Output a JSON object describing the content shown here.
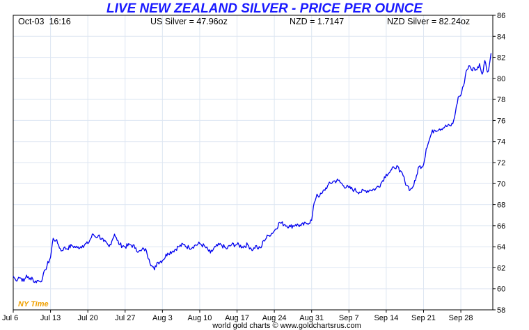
{
  "header": {
    "title": "LIVE NEW ZEALAND SILVER - PRICE PER OUNCE",
    "date_time": "Oct-03  16:16",
    "us_silver": "US Silver = 47.96oz",
    "nzd_rate": "NZD = 1.7147",
    "nzd_silver": "NZD Silver = 82.24oz"
  },
  "footer": {
    "credit": "world gold charts © www.goldchartsrus.com",
    "timezone": "NY Time"
  },
  "colors": {
    "line": "#0000ee",
    "title": "#1a1aff",
    "grid": "#dde6f2",
    "timezone": "#f0a000"
  },
  "chart_data": {
    "type": "line",
    "title": "LIVE NEW ZEALAND SILVER - PRICE PER OUNCE",
    "xlabel": "",
    "ylabel": "",
    "ylim": [
      58,
      86
    ],
    "yticks": [
      58,
      60,
      62,
      64,
      66,
      68,
      70,
      72,
      74,
      76,
      78,
      80,
      82,
      84,
      86
    ],
    "y_axis_side": "right",
    "grid": true,
    "x_domain": [
      "2025-07-06",
      "2025-10-03"
    ],
    "xticks": [
      {
        "date": "2025-07-06",
        "label": "Jul 6"
      },
      {
        "date": "2025-07-13",
        "label": "Jul 13"
      },
      {
        "date": "2025-07-20",
        "label": "Jul 20"
      },
      {
        "date": "2025-07-27",
        "label": "Jul 27"
      },
      {
        "date": "2025-08-03",
        "label": "Aug 3"
      },
      {
        "date": "2025-08-10",
        "label": "Aug 10"
      },
      {
        "date": "2025-08-17",
        "label": "Aug 17"
      },
      {
        "date": "2025-08-24",
        "label": "Aug 24"
      },
      {
        "date": "2025-08-31",
        "label": "Aug 31"
      },
      {
        "date": "2025-09-07",
        "label": "Sep 7"
      },
      {
        "date": "2025-09-14",
        "label": "Sep 14"
      },
      {
        "date": "2025-09-21",
        "label": "Sep 21"
      },
      {
        "date": "2025-09-28",
        "label": "Sep 28"
      }
    ],
    "series": [
      {
        "x": [
          "2025-07-06 00:00",
          "2025-07-06 12:00",
          "2025-07-07 00:00",
          "2025-07-07 12:00",
          "2025-07-08 00:00",
          "2025-07-08 12:00",
          "2025-07-09 00:00",
          "2025-07-09 12:00",
          "2025-07-10 00:00",
          "2025-07-10 12:00",
          "2025-07-11 00:00",
          "2025-07-11 12:00",
          "2025-07-12 00:00",
          "2025-07-13 00:00",
          "2025-07-13 12:00",
          "2025-07-14 00:00",
          "2025-07-14 12:00",
          "2025-07-15 00:00",
          "2025-07-15 12:00",
          "2025-07-16 00:00",
          "2025-07-17 00:00",
          "2025-07-18 00:00",
          "2025-07-19 00:00",
          "2025-07-20 00:00",
          "2025-07-21 00:00",
          "2025-07-21 12:00",
          "2025-07-22 00:00",
          "2025-07-23 00:00",
          "2025-07-24 00:00",
          "2025-07-25 00:00",
          "2025-07-25 12:00",
          "2025-07-26 00:00",
          "2025-07-27 00:00",
          "2025-07-28 00:00",
          "2025-07-29 00:00",
          "2025-07-29 12:00",
          "2025-07-30 00:00",
          "2025-07-30 12:00",
          "2025-07-31 00:00",
          "2025-07-31 12:00",
          "2025-08-01 00:00",
          "2025-08-01 12:00",
          "2025-08-02 00:00",
          "2025-08-03 00:00",
          "2025-08-04 00:00",
          "2025-08-05 00:00",
          "2025-08-06 00:00",
          "2025-08-07 00:00",
          "2025-08-08 00:00",
          "2025-08-09 00:00",
          "2025-08-10 00:00",
          "2025-08-11 00:00",
          "2025-08-12 00:00",
          "2025-08-13 00:00",
          "2025-08-14 00:00",
          "2025-08-15 00:00",
          "2025-08-16 00:00",
          "2025-08-17 00:00",
          "2025-08-18 00:00",
          "2025-08-19 00:00",
          "2025-08-19 12:00",
          "2025-08-20 00:00",
          "2025-08-20 12:00",
          "2025-08-21 00:00",
          "2025-08-21 12:00",
          "2025-08-22 00:00",
          "2025-08-23 00:00",
          "2025-08-24 00:00",
          "2025-08-25 00:00",
          "2025-08-26 00:00",
          "2025-08-27 00:00",
          "2025-08-28 00:00",
          "2025-08-29 00:00",
          "2025-08-30 00:00",
          "2025-08-31 00:00",
          "2025-08-31 12:00",
          "2025-09-01 00:00",
          "2025-09-01 12:00",
          "2025-09-02 00:00",
          "2025-09-03 00:00",
          "2025-09-04 00:00",
          "2025-09-05 00:00",
          "2025-09-06 00:00",
          "2025-09-07 00:00",
          "2025-09-08 00:00",
          "2025-09-09 00:00",
          "2025-09-10 00:00",
          "2025-09-11 00:00",
          "2025-09-12 00:00",
          "2025-09-13 00:00",
          "2025-09-14 00:00",
          "2025-09-14 12:00",
          "2025-09-15 00:00",
          "2025-09-15 12:00",
          "2025-09-16 00:00",
          "2025-09-16 12:00",
          "2025-09-17 00:00",
          "2025-09-17 12:00",
          "2025-09-18 00:00",
          "2025-09-18 12:00",
          "2025-09-19 00:00",
          "2025-09-19 12:00",
          "2025-09-20 00:00",
          "2025-09-21 00:00",
          "2025-09-21 12:00",
          "2025-09-22 00:00",
          "2025-09-22 12:00",
          "2025-09-23 00:00",
          "2025-09-24 00:00",
          "2025-09-25 00:00",
          "2025-09-26 00:00",
          "2025-09-26 12:00",
          "2025-09-27 00:00",
          "2025-09-27 12:00",
          "2025-09-28 00:00",
          "2025-09-28 12:00",
          "2025-09-29 00:00",
          "2025-09-29 12:00",
          "2025-09-30 00:00",
          "2025-09-30 12:00",
          "2025-10-01 00:00",
          "2025-10-01 12:00",
          "2025-10-02 00:00",
          "2025-10-02 12:00",
          "2025-10-03 00:00",
          "2025-10-03 08:00",
          "2025-10-03 16:00"
        ],
        "y": [
          61.2,
          60.8,
          61.1,
          61.0,
          60.7,
          61.3,
          60.9,
          61.1,
          60.6,
          60.8,
          60.7,
          61.0,
          61.8,
          63.0,
          64.8,
          64.6,
          64.2,
          63.6,
          63.9,
          63.8,
          64.1,
          63.9,
          64.1,
          64.3,
          65.2,
          64.9,
          65.1,
          64.5,
          64.0,
          65.2,
          64.6,
          64.2,
          64.0,
          64.2,
          63.9,
          63.5,
          63.6,
          63.8,
          63.6,
          62.8,
          62.2,
          61.8,
          62.5,
          62.7,
          63.4,
          63.6,
          64.0,
          64.2,
          63.9,
          64.1,
          64.3,
          64.0,
          63.4,
          64.0,
          64.2,
          63.8,
          64.2,
          64.2,
          64.0,
          64.2,
          63.9,
          63.7,
          64.1,
          63.8,
          63.9,
          64.6,
          65.1,
          65.5,
          66.3,
          66.1,
          65.9,
          66.1,
          66.0,
          66.2,
          66.5,
          68.2,
          69.0,
          68.8,
          69.1,
          69.8,
          70.2,
          70.3,
          69.8,
          69.6,
          69.4,
          69.2,
          69.3,
          69.4,
          69.5,
          70.0,
          70.9,
          71.0,
          71.3,
          71.5,
          71.7,
          71.1,
          71.0,
          70.2,
          69.8,
          69.4,
          69.7,
          70.3,
          71.5,
          71.8,
          73.3,
          74.0,
          74.8,
          75.1,
          75.2,
          75.4,
          75.5,
          75.7,
          76.8,
          78.2,
          78.4,
          79.3,
          80.7,
          81.2,
          80.8,
          81.0,
          80.8,
          81.4,
          80.4,
          81.7,
          80.6,
          81.2,
          82.4
        ]
      }
    ]
  }
}
